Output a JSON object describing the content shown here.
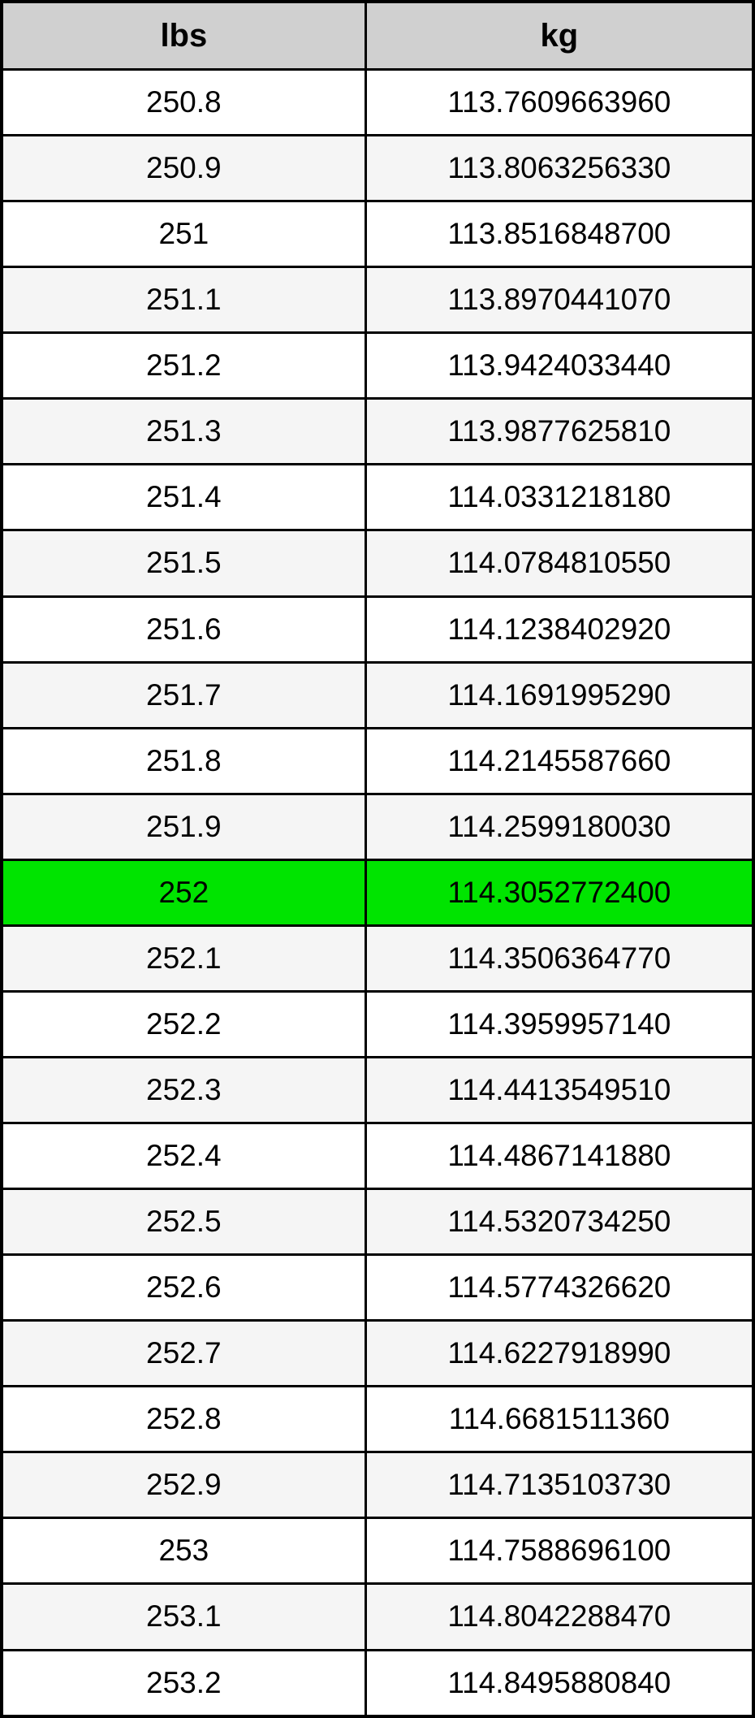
{
  "table": {
    "columns": [
      {
        "key": "lbs",
        "label": "lbs"
      },
      {
        "key": "kg",
        "label": "kg"
      }
    ],
    "rows": [
      {
        "lbs": "250.8",
        "kg": "113.7609663960",
        "highlight": false
      },
      {
        "lbs": "250.9",
        "kg": "113.8063256330",
        "highlight": false
      },
      {
        "lbs": "251",
        "kg": "113.8516848700",
        "highlight": false
      },
      {
        "lbs": "251.1",
        "kg": "113.8970441070",
        "highlight": false
      },
      {
        "lbs": "251.2",
        "kg": "113.9424033440",
        "highlight": false
      },
      {
        "lbs": "251.3",
        "kg": "113.9877625810",
        "highlight": false
      },
      {
        "lbs": "251.4",
        "kg": "114.0331218180",
        "highlight": false
      },
      {
        "lbs": "251.5",
        "kg": "114.0784810550",
        "highlight": false
      },
      {
        "lbs": "251.6",
        "kg": "114.1238402920",
        "highlight": false
      },
      {
        "lbs": "251.7",
        "kg": "114.1691995290",
        "highlight": false
      },
      {
        "lbs": "251.8",
        "kg": "114.2145587660",
        "highlight": false
      },
      {
        "lbs": "251.9",
        "kg": "114.2599180030",
        "highlight": false
      },
      {
        "lbs": "252",
        "kg": "114.3052772400",
        "highlight": true
      },
      {
        "lbs": "252.1",
        "kg": "114.3506364770",
        "highlight": false
      },
      {
        "lbs": "252.2",
        "kg": "114.3959957140",
        "highlight": false
      },
      {
        "lbs": "252.3",
        "kg": "114.4413549510",
        "highlight": false
      },
      {
        "lbs": "252.4",
        "kg": "114.4867141880",
        "highlight": false
      },
      {
        "lbs": "252.5",
        "kg": "114.5320734250",
        "highlight": false
      },
      {
        "lbs": "252.6",
        "kg": "114.5774326620",
        "highlight": false
      },
      {
        "lbs": "252.7",
        "kg": "114.6227918990",
        "highlight": false
      },
      {
        "lbs": "252.8",
        "kg": "114.6681511360",
        "highlight": false
      },
      {
        "lbs": "252.9",
        "kg": "114.7135103730",
        "highlight": false
      },
      {
        "lbs": "253",
        "kg": "114.7588696100",
        "highlight": false
      },
      {
        "lbs": "253.1",
        "kg": "114.8042288470",
        "highlight": false
      },
      {
        "lbs": "253.2",
        "kg": "114.8495880840",
        "highlight": false
      }
    ]
  },
  "colors": {
    "header_bg": "#d0d0d0",
    "row_bg": "#ffffff",
    "row_alt_bg": "#f5f5f5",
    "highlight_bg": "#00e400",
    "border": "#000000",
    "text": "#000000"
  }
}
